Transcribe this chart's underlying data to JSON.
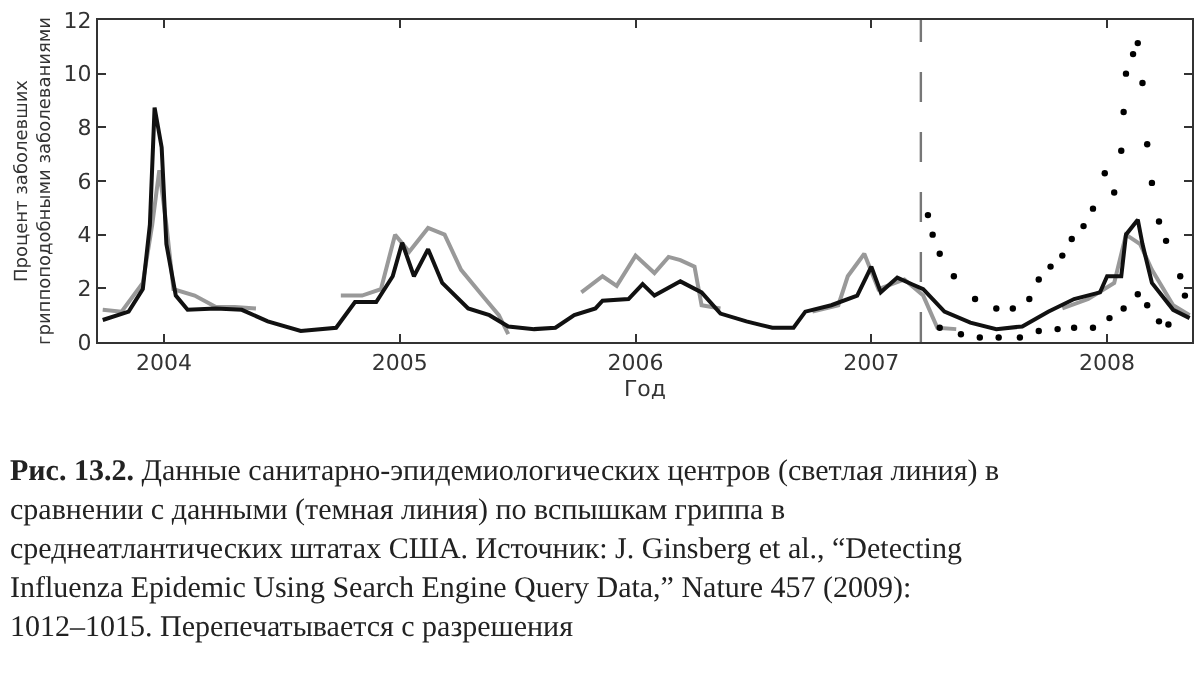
{
  "chart_data": {
    "type": "line",
    "xlabel": "Год",
    "ylabel": "Процент заболевших\nгриппоподобными заболеваниями",
    "xlim": [
      2003.72,
      2008.36
    ],
    "xticks": [
      2004,
      2005,
      2006,
      2007,
      2008
    ],
    "ylim": [
      0,
      12
    ],
    "yticks": [
      0,
      2,
      4,
      6,
      8,
      10,
      12
    ],
    "ref_lines": [
      {
        "axis": "x",
        "value": 2007.21,
        "color": "#777777",
        "line_style": "dashed"
      }
    ],
    "series": [
      {
        "color": "#999999",
        "x": [
          2003.74,
          2003.82,
          2003.91,
          2003.95,
          2003.98,
          2004.01,
          2004.04,
          2004.13,
          2004.22,
          2004.3,
          2004.39,
          null,
          2004.75,
          2004.84,
          2004.92,
          2004.98,
          2005.04,
          2005.12,
          2005.19,
          2005.26,
          2005.35,
          2005.42,
          2005.46,
          null,
          2005.77,
          2005.86,
          2005.92,
          2006.0,
          2006.08,
          2006.14,
          2006.19,
          2006.25,
          2006.28,
          2006.36,
          null,
          2006.75,
          2006.86,
          2006.9,
          2006.97,
          2007.03,
          2007.14,
          2007.22,
          2007.28,
          2007.36,
          null,
          2007.81,
          2007.92,
          2008.03,
          2008.08,
          2008.14,
          2008.19,
          2008.28,
          2008.35
        ],
        "values": [
          1.2,
          1.13,
          2.2,
          4.37,
          6.4,
          4.37,
          1.97,
          1.73,
          1.3,
          1.3,
          1.25,
          null,
          1.73,
          1.73,
          1.97,
          4.0,
          3.36,
          4.25,
          4.0,
          2.69,
          1.73,
          1.0,
          0.29,
          null,
          1.85,
          2.45,
          2.09,
          3.22,
          2.57,
          3.17,
          3.05,
          2.81,
          1.37,
          1.25,
          null,
          1.13,
          1.37,
          2.45,
          3.29,
          1.97,
          2.33,
          1.73,
          0.53,
          0.48,
          null,
          1.25,
          1.6,
          2.2,
          4.0,
          3.65,
          2.69,
          1.37,
          1.0
        ]
      },
      {
        "color": "#111111",
        "x": [
          2003.74,
          2003.85,
          2003.91,
          2003.94,
          2003.96,
          2003.99,
          2004.01,
          2004.05,
          2004.1,
          2004.22,
          2004.33,
          2004.44,
          2004.58,
          2004.73,
          2004.81,
          2004.9,
          2004.97,
          2005.01,
          2005.06,
          2005.12,
          2005.18,
          2005.29,
          2005.38,
          2005.46,
          2005.57,
          2005.66,
          2005.74,
          2005.83,
          2005.86,
          2005.97,
          2006.03,
          2006.08,
          2006.19,
          2006.28,
          2006.36,
          2006.47,
          2006.58,
          2006.67,
          2006.72,
          2006.83,
          2006.94,
          2007.0,
          2007.04,
          2007.11,
          2007.17,
          2007.22,
          2007.31,
          2007.42,
          2007.53,
          2007.64,
          2007.75,
          2007.86,
          2007.97,
          2008.0,
          2008.06,
          2008.08,
          2008.13,
          2008.15,
          2008.19,
          2008.28,
          2008.35
        ],
        "values": [
          0.82,
          1.13,
          1.97,
          4.37,
          8.74,
          7.25,
          3.65,
          1.73,
          1.2,
          1.25,
          1.2,
          0.77,
          0.41,
          0.53,
          1.49,
          1.49,
          2.45,
          3.7,
          2.45,
          3.46,
          2.2,
          1.25,
          1.0,
          0.58,
          0.48,
          0.53,
          1.0,
          1.25,
          1.54,
          1.6,
          2.16,
          1.73,
          2.26,
          1.85,
          1.06,
          0.77,
          0.53,
          0.53,
          1.13,
          1.37,
          1.73,
          2.81,
          1.85,
          2.4,
          2.16,
          1.97,
          1.13,
          0.72,
          0.48,
          0.58,
          1.13,
          1.6,
          1.85,
          2.45,
          2.45,
          4.0,
          4.56,
          3.65,
          2.2,
          1.2,
          0.89
        ]
      },
      {
        "type": "scatter",
        "color": "#000000",
        "x": [
          2007.24,
          2007.26,
          2007.29,
          2007.35,
          2007.44,
          2007.53,
          2007.6,
          2007.67,
          2007.71,
          2007.76,
          2007.81,
          2007.85,
          2007.9,
          2007.94,
          2007.99,
          2008.03,
          2008.06,
          2008.07,
          2008.08,
          2008.11,
          2008.13,
          2008.15,
          2008.17,
          2008.19,
          2008.22,
          2008.25,
          2008.31,
          2008.33
        ],
        "values": [
          4.73,
          4.0,
          3.29,
          2.45,
          1.6,
          1.25,
          1.25,
          1.6,
          2.33,
          2.81,
          3.22,
          3.84,
          4.32,
          4.97,
          6.29,
          5.57,
          7.13,
          8.57,
          10.0,
          10.73,
          11.14,
          9.65,
          7.37,
          5.93,
          4.49,
          3.77,
          2.45,
          1.73
        ]
      },
      {
        "type": "scatter",
        "color": "#000000",
        "x": [
          2007.29,
          2007.38,
          2007.46,
          2007.54,
          2007.63,
          2007.71,
          2007.79,
          2007.86,
          2007.94,
          2008.01,
          2008.07,
          2008.13,
          2008.17,
          2008.22,
          2008.26
        ],
        "values": [
          0.53,
          0.29,
          0.17,
          0.17,
          0.17,
          0.41,
          0.48,
          0.53,
          0.53,
          0.89,
          1.25,
          1.78,
          1.37,
          0.77,
          0.65
        ]
      }
    ],
    "annotations": [
      "Рис. 13.2. Данные санитарно-эпидемиологических центров (светлая линия) в сравнении с данными (темная линия) по вспышкам гриппа в среднеатлантических штатах США. Источник: J. Ginsberg et al., “Detecting Influenza Epidemic Using Search Engine Query Data,” Nature 457 (2009): 1012–1015. Перепечатывается с разрешения"
    ]
  }
}
